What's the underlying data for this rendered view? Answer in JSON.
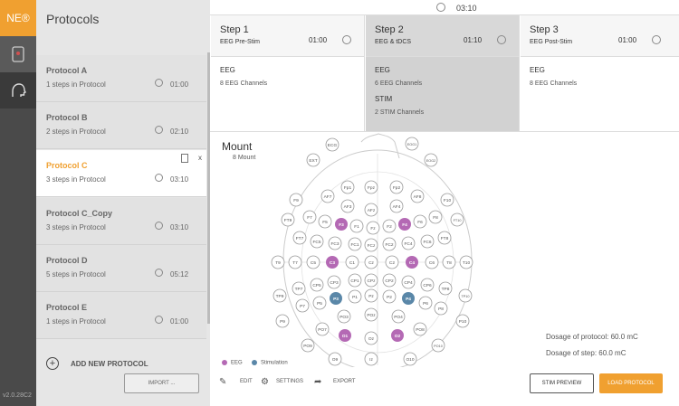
{
  "app": {
    "logo": "NE®",
    "version": "v2.0.28C2"
  },
  "sidebar": {
    "title": "Protocols",
    "protocols": [
      {
        "name": "Protocol A",
        "steps": "1 steps in Protocol",
        "time": "01:00"
      },
      {
        "name": "Protocol B",
        "steps": "2 steps in Protocol",
        "time": "02:10"
      },
      {
        "name": "Protocol C",
        "steps": "3 steps in Protocol",
        "time": "03:10",
        "active_close": "x"
      },
      {
        "name": "Protocol C_Copy",
        "steps": "3 steps in Protocol",
        "time": "03:10"
      },
      {
        "name": "Protocol D",
        "steps": "5 steps in Protocol",
        "time": "05:12"
      },
      {
        "name": "Protocol E",
        "steps": "1 steps in Protocol",
        "time": "01:00"
      }
    ],
    "add_label": "ADD NEW PROTOCOL",
    "import_label": "IMPORT ..."
  },
  "header": {
    "total_time": "03:10"
  },
  "steps": [
    {
      "title": "Step 1",
      "subtitle": "EEG Pre-Stim",
      "time": "01:00",
      "ch1": "EEG",
      "ch1v": "8 EEG Channels",
      "ch2": "",
      "ch2v": ""
    },
    {
      "title": "Step 2",
      "subtitle": "EEG & tDCS",
      "time": "01:10",
      "ch1": "EEG",
      "ch1v": "6 EEG Channels",
      "ch2": "STIM",
      "ch2v": "2 STIM Channels"
    },
    {
      "title": "Step 3",
      "subtitle": "EEG Post-Stim",
      "time": "01:00",
      "ch1": "EEG",
      "ch1v": "8 EEG Channels",
      "ch2": "",
      "ch2v": ""
    }
  ],
  "mount": {
    "title": "Mount",
    "subtitle": "8 Mount",
    "electrodes": [
      "ECG",
      "EOG1",
      "EXT",
      "EOG2",
      "Fp1",
      "Fpz",
      "Fp2",
      "AF7",
      "AF3",
      "AFz",
      "AF4",
      "AF8",
      "F9",
      "F10",
      "F7",
      "F5",
      "F3",
      "F1",
      "Fz",
      "F2",
      "F4",
      "F6",
      "F8",
      "FT9",
      "FT10",
      "FT7",
      "FC5",
      "FC3",
      "FC1",
      "FCz",
      "FC2",
      "FC4",
      "FC6",
      "FT8",
      "T9",
      "T7",
      "C5",
      "C3",
      "C1",
      "Cz",
      "C2",
      "C4",
      "C6",
      "T8",
      "T10",
      "TP7",
      "CP5",
      "CP3",
      "CP1",
      "CPz",
      "CP2",
      "CP4",
      "CP6",
      "TP8",
      "TP9",
      "TP10",
      "P7",
      "P5",
      "P3",
      "P1",
      "Pz",
      "P2",
      "P4",
      "P6",
      "P8",
      "P9",
      "P10",
      "PO7",
      "PO3",
      "POz",
      "PO4",
      "PO8",
      "PO9",
      "PO10",
      "O1",
      "Oz",
      "O2",
      "O9",
      "O10",
      "Iz"
    ],
    "eeg": [
      "F3",
      "F4",
      "C3",
      "C4",
      "O1",
      "O2"
    ],
    "stim": [
      "P3",
      "P4"
    ],
    "legend_eeg": "EEG",
    "legend_stim": "Stimulation",
    "colors": {
      "eeg": "#b469b4",
      "stim": "#5a87a8",
      "accent": "#f0a030"
    }
  },
  "dosage": {
    "protocol": "Dosage of protocol: 60.0 mC",
    "step": "Dosage of step: 60.0 mC"
  },
  "toolbar": {
    "edit": "EDIT",
    "settings": "SETTINGS",
    "export": "EXPORT",
    "stim_preview": "STIM PREVIEW",
    "load": "LOAD PROTOCOL"
  }
}
